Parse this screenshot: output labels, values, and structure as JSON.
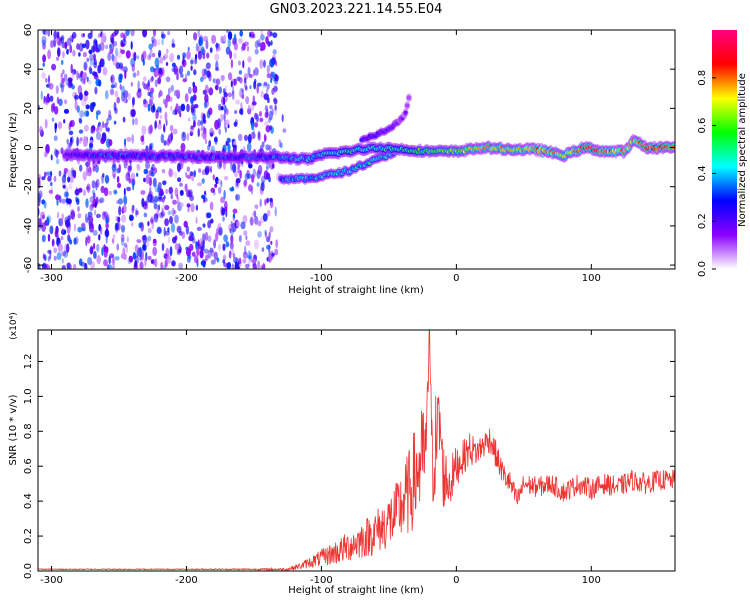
{
  "figure": {
    "title": "GN03.2023.221.14.55.E04"
  },
  "chart_data": [
    {
      "type": "heatmap",
      "xlabel": "Height of straight line (km)",
      "ylabel": "Frequency (Hz)",
      "xlim": [
        -310,
        162
      ],
      "ylim": [
        -62,
        60
      ],
      "xticks": [
        -300,
        -200,
        -100,
        0,
        100
      ],
      "yticks": [
        -60,
        -40,
        -20,
        0,
        20,
        40,
        60
      ],
      "colorbar": {
        "label": "Normalized spectral amplitude",
        "range": [
          0,
          1
        ],
        "ticks": [
          "0.0",
          "0.2",
          "0.4",
          "0.6",
          "0.8"
        ],
        "tick_values": [
          0,
          0.2,
          0.4,
          0.6,
          0.8
        ],
        "colors": [
          "#ffffff",
          "#8b00ff",
          "#0000ff",
          "#00ffff",
          "#00ff00",
          "#ffff00",
          "#ff0000",
          "#ff0080"
        ]
      },
      "noise_region": {
        "x": [
          -310,
          -133
        ],
        "amplitude": 0.3
      },
      "main_trace": [
        {
          "x": -290,
          "y": -4,
          "amp": 0.2
        },
        {
          "x": -270,
          "y": -4,
          "amp": 0.3
        },
        {
          "x": -150,
          "y": -5,
          "amp": 0.3
        },
        {
          "x": -130,
          "y": -5,
          "amp": 0.35
        },
        {
          "x": -110,
          "y": -6,
          "amp": 0.4
        },
        {
          "x": -95,
          "y": -3,
          "amp": 0.45
        },
        {
          "x": -80,
          "y": -2,
          "amp": 0.5
        },
        {
          "x": -60,
          "y": 0,
          "amp": 0.45
        },
        {
          "x": -40,
          "y": -1,
          "amp": 0.5
        },
        {
          "x": -20,
          "y": -2,
          "amp": 0.6
        },
        {
          "x": 0,
          "y": -2,
          "amp": 0.65
        },
        {
          "x": 10,
          "y": -1,
          "amp": 0.7
        },
        {
          "x": 20,
          "y": 0,
          "amp": 0.75
        },
        {
          "x": 40,
          "y": -1,
          "amp": 0.7
        },
        {
          "x": 60,
          "y": -1,
          "amp": 0.8
        },
        {
          "x": 80,
          "y": -4,
          "amp": 0.7
        },
        {
          "x": 95,
          "y": 0,
          "amp": 0.85
        },
        {
          "x": 110,
          "y": -2,
          "amp": 0.8
        },
        {
          "x": 125,
          "y": -2,
          "amp": 0.75
        },
        {
          "x": 132,
          "y": 4,
          "amp": 0.75
        },
        {
          "x": 140,
          "y": 0,
          "amp": 0.85
        },
        {
          "x": 162,
          "y": 0,
          "amp": 0.85
        }
      ],
      "lower_branch": [
        {
          "x": -130,
          "y": -16,
          "amp": 0.35
        },
        {
          "x": -110,
          "y": -16,
          "amp": 0.4
        },
        {
          "x": -95,
          "y": -14,
          "amp": 0.4
        },
        {
          "x": -80,
          "y": -12,
          "amp": 0.45
        },
        {
          "x": -70,
          "y": -9,
          "amp": 0.45
        },
        {
          "x": -55,
          "y": -5,
          "amp": 0.45
        },
        {
          "x": -45,
          "y": -2,
          "amp": 0.45
        }
      ],
      "upper_branch": [
        {
          "x": -70,
          "y": 4,
          "amp": 0.25
        },
        {
          "x": -55,
          "y": 8,
          "amp": 0.2
        },
        {
          "x": -45,
          "y": 12,
          "amp": 0.15
        },
        {
          "x": -37,
          "y": 18,
          "amp": 0.12
        },
        {
          "x": -35,
          "y": 27,
          "amp": 0.12
        }
      ]
    },
    {
      "type": "line",
      "xlabel": "Height of straight line (km)",
      "ylabel": "SNR (10 * v/v)",
      "y_multiplier": "(x10⁴)",
      "xlim": [
        -310,
        162
      ],
      "ylim": [
        0,
        1.38
      ],
      "xticks": [
        -300,
        -200,
        -100,
        0,
        100
      ],
      "yticks": [
        0.0,
        0.2,
        0.4,
        0.6,
        0.8,
        1.0,
        1.2
      ],
      "series": [
        {
          "color": "#ee3333",
          "x": [
            -310,
            -280,
            -250,
            -200,
            -150,
            -125,
            -115,
            -105,
            -95,
            -85,
            -75,
            -65,
            -55,
            -45,
            -35,
            -30,
            -25,
            -22,
            -20,
            -18,
            -15,
            -12,
            -10,
            -5,
            0,
            5,
            10,
            15,
            20,
            25,
            30,
            35,
            40,
            45,
            50,
            60,
            70,
            80,
            90,
            100,
            110,
            120,
            130,
            140,
            150,
            162
          ],
          "y": [
            0.01,
            0.01,
            0.01,
            0.01,
            0.01,
            0.01,
            0.03,
            0.06,
            0.09,
            0.12,
            0.16,
            0.2,
            0.25,
            0.32,
            0.45,
            0.55,
            0.65,
            0.7,
            1.38,
            0.6,
            0.75,
            0.85,
            0.55,
            0.5,
            0.6,
            0.65,
            0.7,
            0.68,
            0.72,
            0.76,
            0.65,
            0.55,
            0.5,
            0.4,
            0.5,
            0.48,
            0.5,
            0.45,
            0.5,
            0.47,
            0.5,
            0.48,
            0.52,
            0.5,
            0.52,
            0.52
          ],
          "noise": [
            0.003,
            0.003,
            0.003,
            0.003,
            0.004,
            0.008,
            0.02,
            0.04,
            0.06,
            0.08,
            0.1,
            0.12,
            0.14,
            0.18,
            0.25,
            0.3,
            0.3,
            0.3,
            0.0,
            0.3,
            0.3,
            0.25,
            0.2,
            0.15,
            0.12,
            0.1,
            0.1,
            0.08,
            0.08,
            0.08,
            0.08,
            0.07,
            0.07,
            0.06,
            0.06,
            0.06,
            0.06,
            0.06,
            0.06,
            0.06,
            0.06,
            0.06,
            0.06,
            0.06,
            0.06,
            0.06
          ]
        }
      ]
    }
  ]
}
